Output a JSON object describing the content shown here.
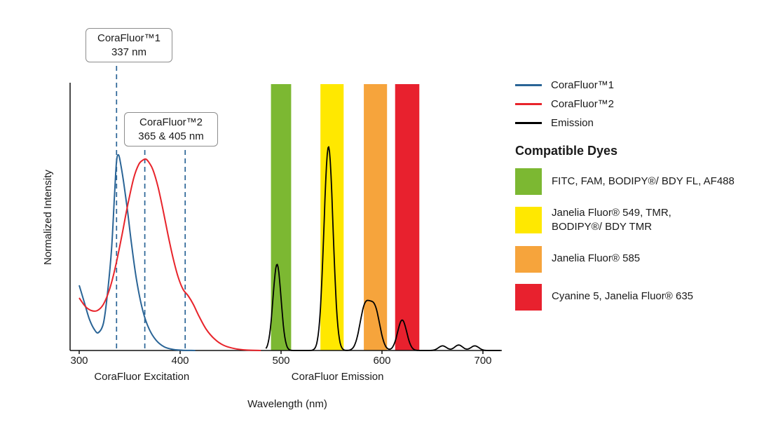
{
  "chart_data": {
    "type": "line",
    "title": "",
    "xlabel": "Wavelength (nm)",
    "ylabel": "Normalized Intensity",
    "x_range": [
      300,
      700
    ],
    "x_ticks": [
      300,
      400,
      500,
      600,
      700
    ],
    "grid": false,
    "dashed_line_color": "#2a6496",
    "region_labels": [
      {
        "text": "CoraFluor Excitation",
        "center_nm": 362
      },
      {
        "text": "CoraFluor Emission",
        "center_nm": 556
      }
    ],
    "annotations": [
      {
        "line1": "CoraFluor™1",
        "line2": "337 nm",
        "lines_nm": [
          337
        ]
      },
      {
        "line1": "CoraFluor™2",
        "line2": "365 & 405 nm",
        "lines_nm": [
          365,
          405
        ]
      }
    ],
    "series": [
      {
        "key": "corafluor1",
        "name": "CoraFluor™1",
        "color": "#2a6496",
        "points": [
          [
            300,
            0.31
          ],
          [
            305,
            0.23
          ],
          [
            310,
            0.15
          ],
          [
            315,
            0.1
          ],
          [
            319,
            0.085
          ],
          [
            324,
            0.13
          ],
          [
            328,
            0.27
          ],
          [
            332,
            0.48
          ],
          [
            335,
            0.74
          ],
          [
            337,
            0.9
          ],
          [
            339,
            0.93
          ],
          [
            341,
            0.89
          ],
          [
            344,
            0.8
          ],
          [
            348,
            0.66
          ],
          [
            352,
            0.5
          ],
          [
            357,
            0.33
          ],
          [
            363,
            0.19
          ],
          [
            369,
            0.105
          ],
          [
            376,
            0.05
          ],
          [
            384,
            0.018
          ],
          [
            393,
            0.005
          ],
          [
            403,
            0.001
          ],
          [
            415,
            0
          ]
        ]
      },
      {
        "key": "corafluor2",
        "name": "CoraFluor™2",
        "color": "#e8242b",
        "points": [
          [
            300,
            0.25
          ],
          [
            306,
            0.21
          ],
          [
            312,
            0.19
          ],
          [
            318,
            0.19
          ],
          [
            324,
            0.22
          ],
          [
            330,
            0.29
          ],
          [
            336,
            0.4
          ],
          [
            342,
            0.54
          ],
          [
            348,
            0.69
          ],
          [
            354,
            0.82
          ],
          [
            359,
            0.885
          ],
          [
            363,
            0.905
          ],
          [
            366,
            0.91
          ],
          [
            369,
            0.895
          ],
          [
            373,
            0.86
          ],
          [
            378,
            0.78
          ],
          [
            383,
            0.67
          ],
          [
            388,
            0.55
          ],
          [
            393,
            0.44
          ],
          [
            398,
            0.35
          ],
          [
            403,
            0.29
          ],
          [
            408,
            0.26
          ],
          [
            413,
            0.22
          ],
          [
            419,
            0.16
          ],
          [
            426,
            0.1
          ],
          [
            434,
            0.055
          ],
          [
            443,
            0.025
          ],
          [
            454,
            0.009
          ],
          [
            466,
            0.002
          ],
          [
            480,
            0
          ]
        ]
      },
      {
        "key": "emission",
        "name": "Emission",
        "color": "#000000",
        "range_nm": [
          485,
          718
        ],
        "gaussian_peaks": [
          {
            "center_nm": 496,
            "height": 0.41,
            "sigma_nm": 4
          },
          {
            "center_nm": 547,
            "height": 0.97,
            "sigma_nm": 4.5
          },
          {
            "center_nm": 583,
            "height": 0.2,
            "sigma_nm": 5
          },
          {
            "center_nm": 593,
            "height": 0.19,
            "sigma_nm": 5
          },
          {
            "center_nm": 620,
            "height": 0.145,
            "sigma_nm": 4.5
          },
          {
            "center_nm": 660,
            "height": 0.022,
            "sigma_nm": 4
          },
          {
            "center_nm": 676,
            "height": 0.026,
            "sigma_nm": 4
          },
          {
            "center_nm": 692,
            "height": 0.022,
            "sigma_nm": 4
          }
        ]
      }
    ],
    "filter_bands": [
      {
        "from_nm": 490,
        "to_nm": 510,
        "color": "#7cb832",
        "label": "FITC, FAM, BODIPY®/ BDY FL, AF488"
      },
      {
        "from_nm": 539,
        "to_nm": 562,
        "color": "#ffe800",
        "label": "Janelia Fluor® 549, TMR, BODIPY®/ BDY TMR"
      },
      {
        "from_nm": 582,
        "to_nm": 605,
        "color": "#f6a43c",
        "label": "Janelia Fluor® 585"
      },
      {
        "from_nm": 613,
        "to_nm": 637,
        "color": "#e8212e",
        "label": "Cyanine 5, Janelia Fluor® 635"
      }
    ]
  },
  "legend": {
    "series": [
      {
        "label": "CoraFluor™1",
        "color": "#2a6496"
      },
      {
        "label": "CoraFluor™2",
        "color": "#e8242b"
      },
      {
        "label": "Emission",
        "color": "#000000"
      }
    ],
    "dyes_heading": "Compatible Dyes",
    "dyes": [
      {
        "color": "#7cb832",
        "label": "FITC, FAM, BODIPY®/ BDY FL, AF488"
      },
      {
        "color": "#ffe800",
        "label": "Janelia Fluor® 549, TMR,\nBODIPY®/ BDY TMR"
      },
      {
        "color": "#f6a43c",
        "label": "Janelia Fluor® 585"
      },
      {
        "color": "#e8212e",
        "label": "Cyanine 5, Janelia Fluor® 635"
      }
    ]
  }
}
